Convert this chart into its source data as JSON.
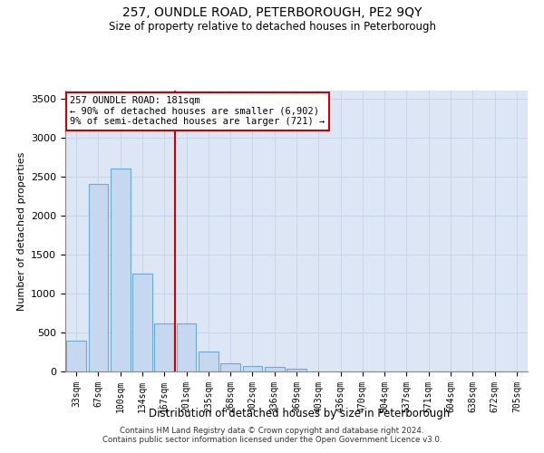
{
  "title1": "257, OUNDLE ROAD, PETERBOROUGH, PE2 9QY",
  "title2": "Size of property relative to detached houses in Peterborough",
  "xlabel": "Distribution of detached houses by size in Peterborough",
  "ylabel": "Number of detached properties",
  "categories": [
    "33sqm",
    "67sqm",
    "100sqm",
    "134sqm",
    "167sqm",
    "201sqm",
    "235sqm",
    "268sqm",
    "302sqm",
    "336sqm",
    "369sqm",
    "403sqm",
    "436sqm",
    "470sqm",
    "504sqm",
    "537sqm",
    "571sqm",
    "604sqm",
    "638sqm",
    "672sqm",
    "705sqm"
  ],
  "values": [
    400,
    2400,
    2600,
    1250,
    620,
    620,
    250,
    100,
    65,
    55,
    30,
    0,
    0,
    0,
    0,
    0,
    0,
    0,
    0,
    0,
    0
  ],
  "bar_color": "#c5d8ef",
  "bar_edge_color": "#6aaad4",
  "vline_color": "#cc0000",
  "annotation_text": "257 OUNDLE ROAD: 181sqm\n← 90% of detached houses are smaller (6,902)\n9% of semi-detached houses are larger (721) →",
  "annotation_box_color": "#ffffff",
  "annotation_border_color": "#cc0000",
  "ylim": [
    0,
    3600
  ],
  "yticks": [
    0,
    500,
    1000,
    1500,
    2000,
    2500,
    3000,
    3500
  ],
  "footer": "Contains HM Land Registry data © Crown copyright and database right 2024.\nContains public sector information licensed under the Open Government Licence v3.0.",
  "grid_color": "#c8d4e8",
  "bg_color": "#dce6f5"
}
